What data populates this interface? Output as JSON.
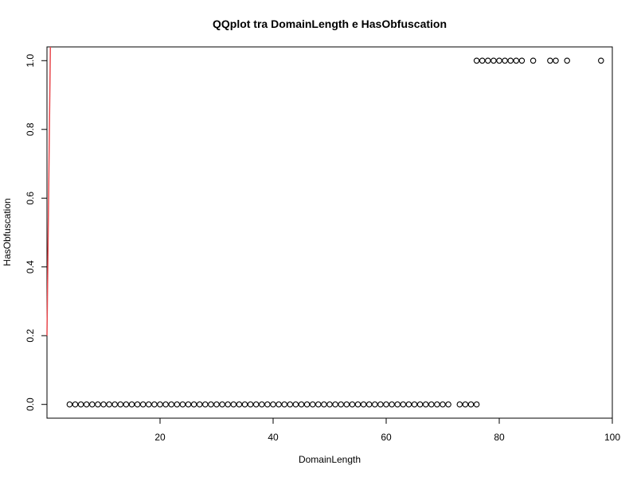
{
  "chart_data": {
    "type": "scatter",
    "title": "QQplot tra DomainLength e HasObfuscation",
    "xlabel": "DomainLength",
    "ylabel": "HasObfuscation",
    "xlim": [
      0,
      100
    ],
    "ylim": [
      -0.04,
      1.04
    ],
    "x_ticks": [
      20,
      40,
      60,
      80,
      100
    ],
    "y_ticks": [
      0.0,
      0.2,
      0.4,
      0.6,
      0.8,
      1.0
    ],
    "x_tick_labels": [
      "20",
      "40",
      "60",
      "80",
      "100"
    ],
    "y_tick_labels": [
      "0.0",
      "0.2",
      "0.4",
      "0.6",
      "0.8",
      "1.0"
    ],
    "grid": false,
    "series": [
      {
        "marker": "open-circle",
        "color": "#000000",
        "points": [
          [
            4,
            0
          ],
          [
            5,
            0
          ],
          [
            6,
            0
          ],
          [
            7,
            0
          ],
          [
            8,
            0
          ],
          [
            9,
            0
          ],
          [
            10,
            0
          ],
          [
            11,
            0
          ],
          [
            12,
            0
          ],
          [
            13,
            0
          ],
          [
            14,
            0
          ],
          [
            15,
            0
          ],
          [
            16,
            0
          ],
          [
            17,
            0
          ],
          [
            18,
            0
          ],
          [
            19,
            0
          ],
          [
            20,
            0
          ],
          [
            21,
            0
          ],
          [
            22,
            0
          ],
          [
            23,
            0
          ],
          [
            24,
            0
          ],
          [
            25,
            0
          ],
          [
            26,
            0
          ],
          [
            27,
            0
          ],
          [
            28,
            0
          ],
          [
            29,
            0
          ],
          [
            30,
            0
          ],
          [
            31,
            0
          ],
          [
            32,
            0
          ],
          [
            33,
            0
          ],
          [
            34,
            0
          ],
          [
            35,
            0
          ],
          [
            36,
            0
          ],
          [
            37,
            0
          ],
          [
            38,
            0
          ],
          [
            39,
            0
          ],
          [
            40,
            0
          ],
          [
            41,
            0
          ],
          [
            42,
            0
          ],
          [
            43,
            0
          ],
          [
            44,
            0
          ],
          [
            45,
            0
          ],
          [
            46,
            0
          ],
          [
            47,
            0
          ],
          [
            48,
            0
          ],
          [
            49,
            0
          ],
          [
            50,
            0
          ],
          [
            51,
            0
          ],
          [
            52,
            0
          ],
          [
            53,
            0
          ],
          [
            54,
            0
          ],
          [
            55,
            0
          ],
          [
            56,
            0
          ],
          [
            57,
            0
          ],
          [
            58,
            0
          ],
          [
            59,
            0
          ],
          [
            60,
            0
          ],
          [
            61,
            0
          ],
          [
            62,
            0
          ],
          [
            63,
            0
          ],
          [
            64,
            0
          ],
          [
            65,
            0
          ],
          [
            66,
            0
          ],
          [
            67,
            0
          ],
          [
            68,
            0
          ],
          [
            69,
            0
          ],
          [
            70,
            0
          ],
          [
            71,
            0
          ],
          [
            73,
            0
          ],
          [
            74,
            0
          ],
          [
            75,
            0
          ],
          [
            76,
            0
          ],
          [
            76,
            1
          ],
          [
            77,
            1
          ],
          [
            78,
            1
          ],
          [
            79,
            1
          ],
          [
            80,
            1
          ],
          [
            81,
            1
          ],
          [
            82,
            1
          ],
          [
            83,
            1
          ],
          [
            84,
            1
          ],
          [
            86,
            1
          ],
          [
            89,
            1
          ],
          [
            90,
            1
          ],
          [
            92,
            1
          ],
          [
            98,
            1
          ]
        ]
      }
    ],
    "reference_line": {
      "color": "#e8484d",
      "from": [
        0,
        0.2
      ],
      "to": [
        0.6,
        1.04
      ]
    }
  }
}
